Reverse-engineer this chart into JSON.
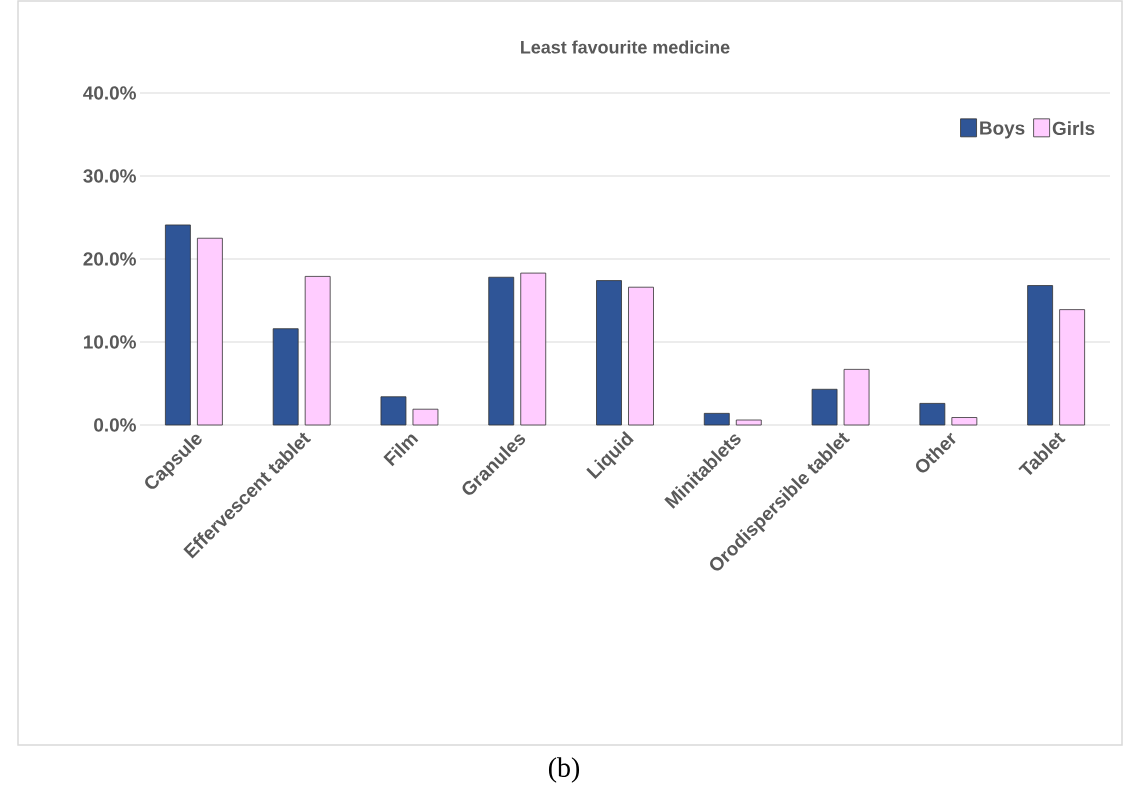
{
  "chart_data": {
    "type": "bar",
    "title": "Least favourite medicine",
    "categories": [
      "Capsule",
      "Effervescent tablet",
      "Film",
      "Granules",
      "Liquid",
      "Minitablets",
      "Orodispersible tablet",
      "Other",
      "Tablet"
    ],
    "series": [
      {
        "name": "Boys",
        "color": "#2f5597",
        "values": [
          24.1,
          11.6,
          3.4,
          17.8,
          17.4,
          1.4,
          4.3,
          2.6,
          16.8
        ]
      },
      {
        "name": "Girls",
        "color": "#ffccff",
        "values": [
          22.5,
          17.9,
          1.9,
          18.3,
          16.6,
          0.6,
          6.7,
          0.9,
          13.9
        ]
      }
    ],
    "ylim": [
      0,
      40
    ],
    "yticks": [
      {
        "value": 0,
        "label": "0.0%"
      },
      {
        "value": 10,
        "label": "10.0%"
      },
      {
        "value": 20,
        "label": "20.0%"
      },
      {
        "value": 30,
        "label": "30.0%"
      },
      {
        "value": 40,
        "label": "40.0%"
      }
    ],
    "grid": "y",
    "legend": "top right",
    "annotations": [
      "(b)"
    ]
  }
}
